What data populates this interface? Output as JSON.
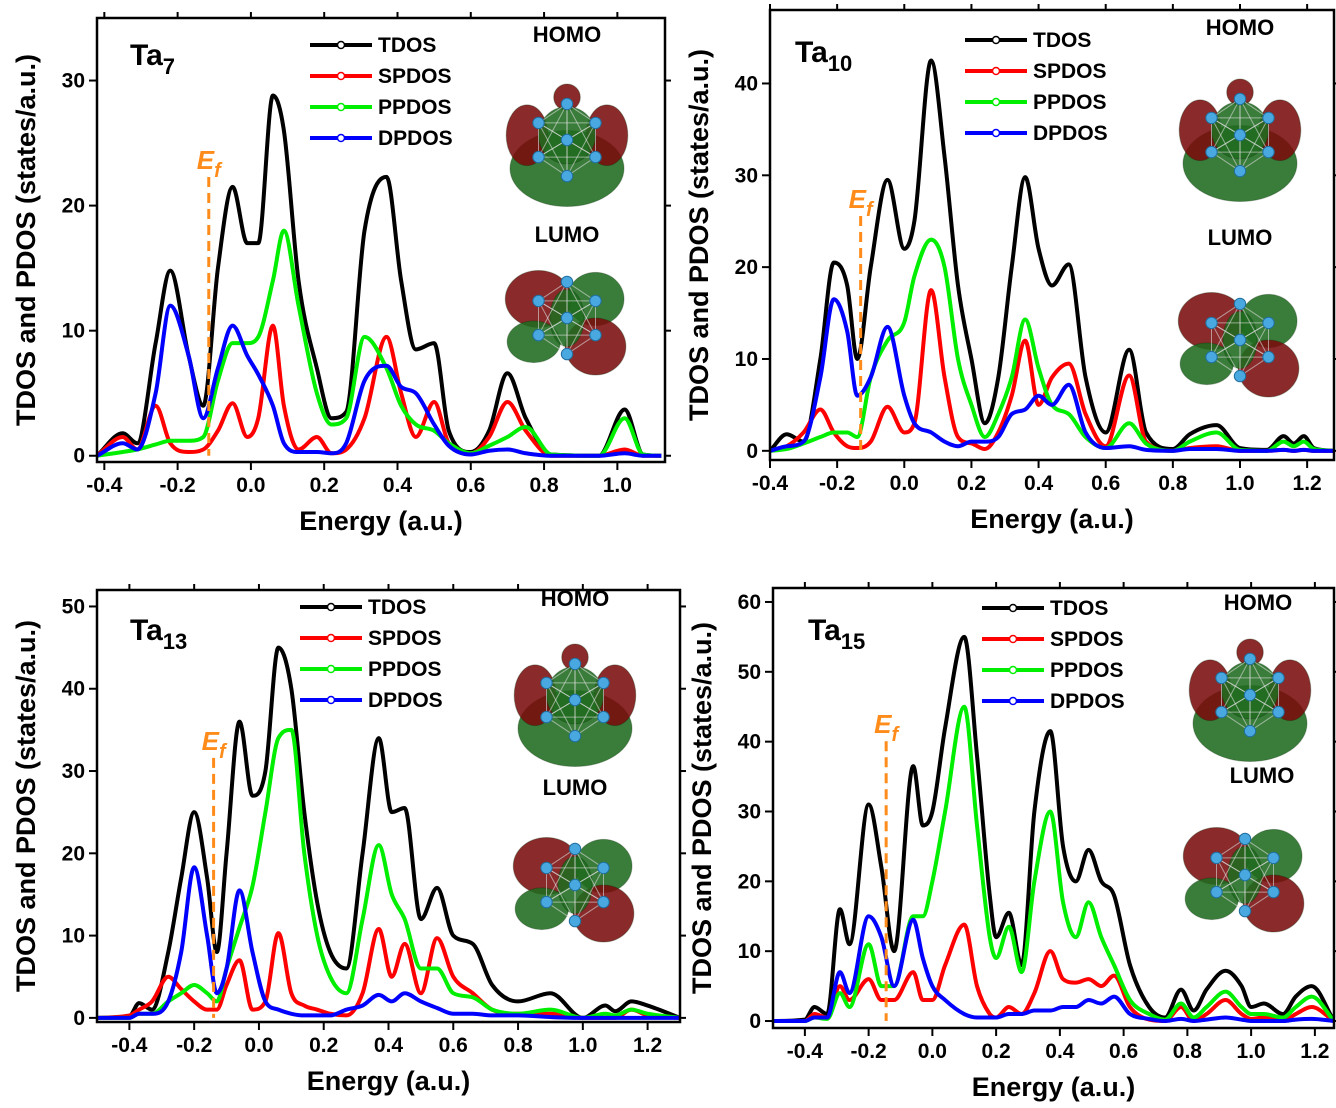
{
  "chart_data": [
    {
      "type": "line",
      "title": "Ta",
      "title_subscript": "7",
      "xlabel": "Energy (a.u.)",
      "ylabel": "TDOS and PDOS (states/a.u.)",
      "x": [
        -0.42,
        -0.35,
        -0.31,
        -0.26,
        -0.22,
        -0.17,
        -0.13,
        -0.09,
        -0.05,
        -0.01,
        0.02,
        0.06,
        0.09,
        0.13,
        0.18,
        0.22,
        0.26,
        0.31,
        0.37,
        0.41,
        0.45,
        0.5,
        0.54,
        0.6,
        0.65,
        0.7,
        0.75,
        0.82,
        0.95,
        1.02,
        1.07,
        1.12
      ],
      "series": [
        {
          "name": "TDOS",
          "color": "#000000",
          "values": [
            0,
            1.8,
            1,
            9,
            14.8,
            8,
            4,
            15,
            21.5,
            17,
            17,
            28.8,
            26,
            14,
            7,
            3,
            3.5,
            18,
            22.3,
            14,
            8.5,
            9,
            2,
            0.3,
            2,
            6.6,
            3,
            0.1,
            0,
            3.7,
            0.1,
            0
          ]
        },
        {
          "name": "SPDOS",
          "color": "#ff0000",
          "values": [
            0,
            1.5,
            0.5,
            4,
            1,
            0.3,
            0.5,
            2,
            4.2,
            1.5,
            3,
            10.4,
            4,
            0.5,
            1.5,
            0.2,
            0.5,
            3,
            9.5,
            5,
            1.5,
            4.3,
            1,
            0.2,
            1.5,
            4.3,
            2,
            0,
            0,
            0.5,
            0,
            0
          ]
        },
        {
          "name": "PPDOS",
          "color": "#00ee00",
          "values": [
            0,
            0.3,
            0.5,
            0.9,
            1.2,
            1.2,
            1.5,
            6,
            9,
            9,
            9.5,
            14,
            18,
            12,
            5,
            2.5,
            3,
            9.5,
            7,
            4,
            2.5,
            2,
            1,
            0.2,
            0.8,
            1.5,
            2.3,
            0.1,
            0,
            3,
            0.1,
            0
          ]
        },
        {
          "name": "DPDOS",
          "color": "#0000ff",
          "values": [
            0,
            1,
            0.5,
            5,
            12,
            8,
            3,
            7,
            10.4,
            8,
            6.5,
            4,
            1,
            0.3,
            0.3,
            0.2,
            1,
            6,
            7.2,
            5.5,
            5,
            2.5,
            0.8,
            0.1,
            0.4,
            0.5,
            0.2,
            0,
            0,
            0.2,
            0,
            0
          ]
        }
      ],
      "xlim": [
        -0.42,
        1.13
      ],
      "ylim": [
        -0.5,
        35
      ],
      "xticks": [
        -0.4,
        -0.2,
        {
          "value": 0,
          "label": "0.0"
        },
        0.2,
        0.4,
        0.6,
        0.8,
        {
          "value": 1,
          "label": "1.0"
        }
      ],
      "yticks": [
        0,
        10,
        20,
        30
      ],
      "fermi_level": -0.115,
      "fermi_label": "E",
      "fermi_subscript": "f",
      "fermi_color": "#ff8c1a",
      "insets": [
        "HOMO",
        "LUMO"
      ],
      "legend": "upper center"
    },
    {
      "type": "line",
      "title": "Ta",
      "title_subscript": "10",
      "xlabel": "Energy (a.u.)",
      "ylabel": "TDOS and PDOS (states/a.u.)",
      "x": [
        -0.4,
        -0.35,
        -0.3,
        -0.25,
        -0.21,
        -0.17,
        -0.14,
        -0.1,
        -0.05,
        0,
        0.03,
        0.08,
        0.12,
        0.16,
        0.2,
        0.24,
        0.28,
        0.32,
        0.36,
        0.4,
        0.44,
        0.49,
        0.54,
        0.6,
        0.67,
        0.72,
        0.8,
        0.85,
        0.93,
        1,
        1.08,
        1.13,
        1.16,
        1.19,
        1.22,
        1.28
      ],
      "series": [
        {
          "name": "TDOS",
          "color": "#000000",
          "values": [
            0,
            1.8,
            1,
            10,
            20.5,
            18,
            10,
            20,
            29.5,
            22,
            25,
            42.5,
            32,
            18,
            10,
            3,
            8,
            20,
            29.8,
            22,
            18,
            20.3,
            8,
            2,
            11,
            2,
            0.2,
            1.8,
            2.8,
            0.3,
            0.1,
            1.6,
            0.8,
            1.6,
            0.3,
            0
          ]
        },
        {
          "name": "SPDOS",
          "color": "#ff0000",
          "values": [
            0,
            0.5,
            2,
            4.5,
            2,
            0.5,
            0.3,
            1,
            4.8,
            2,
            3,
            17.5,
            8,
            1.5,
            0.8,
            0.2,
            2,
            6,
            12,
            5,
            8,
            9.5,
            4,
            0.5,
            8.2,
            1,
            0,
            0.3,
            0.5,
            0,
            0,
            0.1,
            0,
            0.1,
            0,
            0
          ]
        },
        {
          "name": "PPDOS",
          "color": "#00ee00",
          "values": [
            0,
            0.2,
            0.8,
            1.5,
            2,
            2,
            1.5,
            8,
            12,
            14,
            19,
            23,
            20,
            10,
            5,
            1.5,
            4,
            8,
            14.3,
            9,
            5,
            4,
            1.5,
            0.3,
            3,
            0.8,
            0,
            1,
            2,
            0.1,
            0,
            1,
            0.5,
            1,
            0.2,
            0
          ]
        },
        {
          "name": "DPDOS",
          "color": "#0000ff",
          "values": [
            0,
            0.5,
            1,
            8,
            16.5,
            13,
            6,
            8,
            13.5,
            6,
            3,
            2,
            1,
            0.5,
            1,
            1,
            1.5,
            4,
            4.5,
            6,
            5,
            7.2,
            2,
            0.3,
            0.5,
            0.1,
            0,
            0.2,
            0.2,
            0,
            0,
            0.1,
            0,
            0.1,
            0,
            0
          ]
        }
      ],
      "xlim": [
        -0.4,
        1.28
      ],
      "ylim": [
        -1,
        48
      ],
      "xticks": [
        -0.4,
        -0.2,
        {
          "value": 0,
          "label": "0.0"
        },
        0.2,
        0.4,
        0.6,
        0.8,
        {
          "value": 1,
          "label": "1.0"
        },
        1.2
      ],
      "yticks": [
        0,
        10,
        20,
        30,
        40
      ],
      "fermi_level": -0.13,
      "fermi_label": "E",
      "fermi_subscript": "f",
      "fermi_color": "#ff8c1a",
      "insets": [
        "HOMO",
        "LUMO"
      ],
      "legend": "upper center"
    },
    {
      "type": "line",
      "title": "Ta",
      "title_subscript": "13",
      "xlabel": "Energy (a.u.)",
      "ylabel": "TDOS and PDOS (states/a.u.)",
      "x": [
        -0.5,
        -0.4,
        -0.37,
        -0.33,
        -0.28,
        -0.24,
        -0.2,
        -0.16,
        -0.13,
        -0.1,
        -0.06,
        -0.02,
        0.02,
        0.06,
        0.1,
        0.14,
        0.18,
        0.22,
        0.27,
        0.32,
        0.37,
        0.41,
        0.45,
        0.5,
        0.55,
        0.6,
        0.66,
        0.72,
        0.8,
        0.9,
        1,
        1.07,
        1.1,
        1.15,
        1.2,
        1.3
      ],
      "series": [
        {
          "name": "TDOS",
          "color": "#000000",
          "values": [
            0,
            0.2,
            1.8,
            1,
            8,
            17,
            25,
            17,
            8,
            20,
            36,
            27,
            30,
            45,
            40,
            25,
            14,
            8,
            6,
            20,
            34,
            25,
            25.5,
            12,
            15.8,
            10,
            9,
            4,
            2,
            3,
            0,
            1.5,
            0.8,
            2,
            1.5,
            0
          ]
        },
        {
          "name": "SPDOS",
          "color": "#ff0000",
          "values": [
            0,
            0.3,
            1,
            2,
            5,
            3.5,
            2,
            1,
            1,
            4,
            7,
            1,
            2,
            10.3,
            3,
            1.5,
            1,
            0.5,
            0.3,
            3,
            10.8,
            5,
            9,
            3,
            9.7,
            5,
            3,
            1,
            0.5,
            0.5,
            0,
            0,
            0,
            1,
            0.3,
            0
          ]
        },
        {
          "name": "PPDOS",
          "color": "#00ee00",
          "values": [
            0,
            0,
            0.5,
            0.5,
            2,
            3,
            4,
            3,
            2,
            6,
            11,
            16,
            25,
            34,
            35,
            20,
            10,
            5,
            3,
            12,
            21,
            15,
            12,
            6,
            6,
            3,
            2.5,
            1,
            0.5,
            1,
            0,
            0.5,
            0.3,
            1,
            0.5,
            0
          ]
        },
        {
          "name": "DPDOS",
          "color": "#0000ff",
          "values": [
            0,
            0,
            0.5,
            0.5,
            2,
            8,
            18.3,
            10,
            3,
            6,
            15.5,
            8,
            2,
            1,
            0.5,
            0.3,
            0.3,
            0.3,
            1,
            1.5,
            2.8,
            2,
            3,
            2,
            1.2,
            0.5,
            0.5,
            0.3,
            0.3,
            0.1,
            0,
            0,
            0,
            0,
            0,
            0
          ]
        }
      ],
      "xlim": [
        -0.5,
        1.3
      ],
      "ylim": [
        -0.5,
        52
      ],
      "xticks": [
        -0.4,
        -0.2,
        {
          "value": 0,
          "label": "0.0"
        },
        0.2,
        0.4,
        0.6,
        0.8,
        {
          "value": 1,
          "label": "1.0"
        },
        1.2
      ],
      "yticks": [
        0,
        10,
        20,
        30,
        40,
        50
      ],
      "fermi_level": -0.14,
      "fermi_label": "E",
      "fermi_subscript": "f",
      "fermi_color": "#ff8c1a",
      "insets": [
        "HOMO",
        "LUMO"
      ],
      "legend": "upper center"
    },
    {
      "type": "line",
      "title": "Ta",
      "title_subscript": "15",
      "xlabel": "Energy (a.u.)",
      "ylabel": "TDOS and PDOS (states/a.u.)",
      "x": [
        -0.5,
        -0.4,
        -0.37,
        -0.33,
        -0.29,
        -0.26,
        -0.2,
        -0.16,
        -0.12,
        -0.06,
        -0.03,
        0,
        0.04,
        0.1,
        0.14,
        0.18,
        0.2,
        0.24,
        0.28,
        0.32,
        0.37,
        0.41,
        0.45,
        0.49,
        0.53,
        0.57,
        0.62,
        0.68,
        0.73,
        0.78,
        0.82,
        0.86,
        0.92,
        0.97,
        1,
        1.04,
        1.1,
        1.14,
        1.19,
        1.26
      ],
      "series": [
        {
          "name": "TDOS",
          "color": "#000000",
          "values": [
            0,
            0.2,
            2,
            1,
            16,
            11,
            31,
            22,
            10,
            36.5,
            28,
            30,
            42,
            55,
            38,
            18,
            12,
            15.5,
            8,
            30,
            41.5,
            25,
            20,
            24.5,
            20,
            18,
            8,
            2,
            0.5,
            4.5,
            1.5,
            4.5,
            7.2,
            5,
            2,
            2.5,
            1,
            3.5,
            5,
            0
          ]
        },
        {
          "name": "SPDOS",
          "color": "#ff0000",
          "values": [
            0,
            0,
            1,
            0.5,
            5,
            3,
            6,
            3,
            3,
            7,
            3,
            3,
            8,
            13.8,
            5,
            1,
            0.5,
            2,
            1,
            4,
            10,
            6,
            5.5,
            6,
            5,
            6.5,
            2,
            0.2,
            0,
            2,
            0,
            1,
            3,
            1,
            0.3,
            0.5,
            0,
            1,
            2,
            0
          ]
        },
        {
          "name": "PPDOS",
          "color": "#00ee00",
          "values": [
            0,
            0,
            0.5,
            0.3,
            4,
            2,
            11,
            5,
            5,
            15,
            15,
            20,
            30,
            45,
            28,
            12,
            9,
            13.5,
            7,
            20,
            30,
            17,
            12,
            17,
            12,
            8,
            3,
            1,
            0.2,
            2.5,
            0.5,
            2,
            4.2,
            2,
            1,
            1,
            0.5,
            2,
            3.5,
            0
          ]
        },
        {
          "name": "DPDOS",
          "color": "#0000ff",
          "values": [
            0,
            0,
            0.5,
            0.5,
            7,
            4,
            15,
            12,
            5,
            14.5,
            9,
            5,
            3,
            1,
            0.5,
            0.5,
            0.5,
            1,
            1,
            1.5,
            1.5,
            2,
            2,
            3,
            2.5,
            3.5,
            1,
            0.3,
            0,
            0.3,
            0,
            0.2,
            0.5,
            0.2,
            0,
            0,
            0,
            0.2,
            0.3,
            0
          ]
        }
      ],
      "xlim": [
        -0.5,
        1.26
      ],
      "ylim": [
        -1,
        62
      ],
      "xticks": [
        -0.4,
        -0.2,
        {
          "value": 0,
          "label": "0.0"
        },
        0.2,
        0.4,
        0.6,
        0.8,
        {
          "value": 1,
          "label": "1.0"
        },
        1.2
      ],
      "yticks": [
        0,
        10,
        20,
        30,
        40,
        50,
        60
      ],
      "fermi_level": -0.145,
      "fermi_label": "E",
      "fermi_subscript": "f",
      "fermi_color": "#ff8c1a",
      "insets": [
        "HOMO",
        "LUMO"
      ],
      "legend": "upper center"
    }
  ]
}
